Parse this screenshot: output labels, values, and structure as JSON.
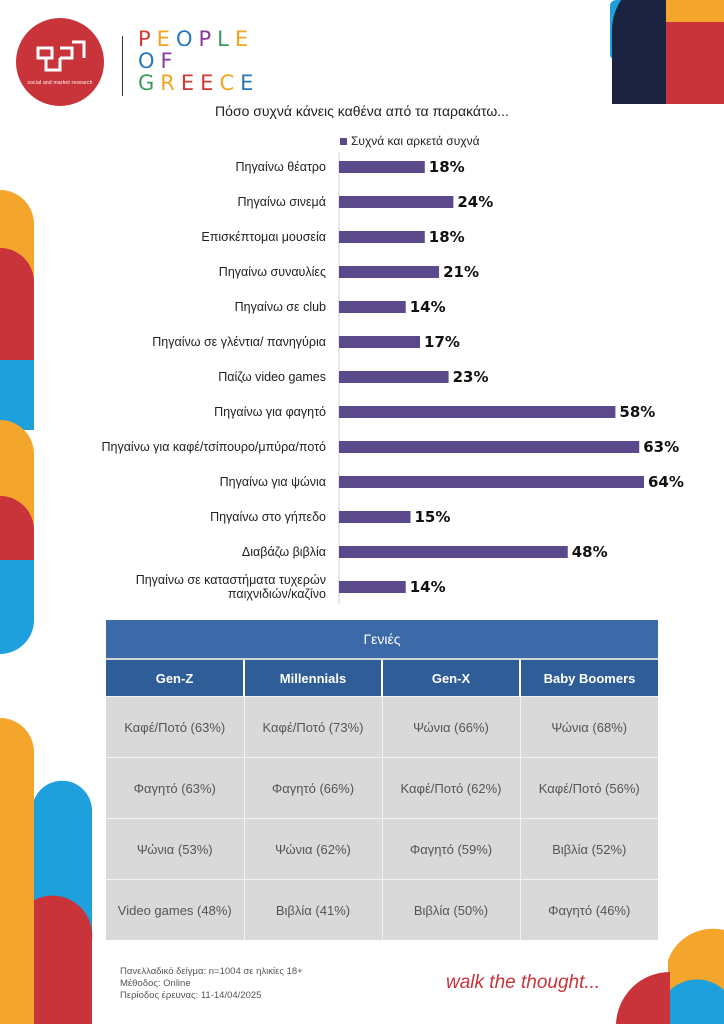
{
  "brand": {
    "logo_subtitle": "social and market research",
    "name_line1": "PEOPLE",
    "name_line2": "OF",
    "name_line3": "GREECE"
  },
  "chart_data": {
    "type": "bar",
    "orientation": "horizontal",
    "title": "Πόσο συχνά κάνεις καθένα από τα παρακάτω...",
    "legend": "Συχνά και αρκετά συχνά",
    "legend_position": "top",
    "series_color": "#5a4a8c",
    "categories": [
      "Πηγαίνω θέατρο",
      "Πηγαίνω σινεμά",
      "Επισκέπτομαι μουσεία",
      "Πηγαίνω συναυλίες",
      "Πηγαίνω σε club",
      "Πηγαίνω σε γλέντια/ πανηγύρια",
      "Παίζω video games",
      "Πηγαίνω για φαγητό",
      "Πηγαίνω για καφέ/τσίπουρο/μπύρα/ποτό",
      "Πηγαίνω για ψώνια",
      "Πηγαίνω στο γήπεδο",
      "Διαβάζω βιβλία",
      "Πηγαίνω σε καταστήματα τυχερών παιχνιδιών/καζίνο"
    ],
    "values": [
      18,
      24,
      18,
      21,
      14,
      17,
      23,
      58,
      63,
      64,
      15,
      48,
      14
    ],
    "value_labels": [
      "18%",
      "24%",
      "18%",
      "21%",
      "14%",
      "17%",
      "23%",
      "58%",
      "63%",
      "64%",
      "15%",
      "48%",
      "14%"
    ],
    "xlim": [
      0,
      64
    ],
    "grid": false
  },
  "table": {
    "title": "Γενιές",
    "headers": [
      "Gen-Z",
      "Millennials",
      "Gen-X",
      "Baby Boomers"
    ],
    "rows": [
      [
        "Καφέ/Ποτό (63%)",
        "Καφέ/Ποτό (73%)",
        "Ψώνια (66%)",
        "Ψώνια (68%)"
      ],
      [
        "Φαγητό (63%)",
        "Φαγητό (66%)",
        "Καφέ/Ποτό (62%)",
        "Καφέ/Ποτό (56%)"
      ],
      [
        "Ψώνια (53%)",
        "Ψώνια (62%)",
        "Φαγητό (59%)",
        "Βιβλία (52%)"
      ],
      [
        "Video games (48%)",
        "Βιβλία (41%)",
        "Βιβλία (50%)",
        "Φαγητό (46%)"
      ]
    ],
    "header_color": "#2f5d98"
  },
  "footer": {
    "sample": "Πανελλαδικό δείγμα: n=1004 σε ηλικίες 18+",
    "method": "Μέθοδος: Online",
    "period": "Περίοδος έρευνας: 11-14/04/2025",
    "slogan": "walk the thought..."
  },
  "colors": {
    "red": "#c8343a",
    "orange": "#f4a52c",
    "blue": "#1ea0dc",
    "navy": "#1c2340"
  }
}
